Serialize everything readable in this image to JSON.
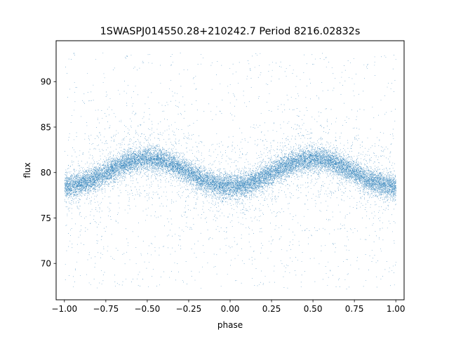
{
  "chart_data": {
    "type": "scatter",
    "title": "1SWASPJ014550.28+210242.7 Period 8216.02832s",
    "xlabel": "phase",
    "ylabel": "flux",
    "xlim": [
      -1.05,
      1.05
    ],
    "ylim": [
      66.0,
      94.5
    ],
    "x_ticks": [
      -1.0,
      -0.75,
      -0.5,
      -0.25,
      0.0,
      0.25,
      0.5,
      0.75,
      1.0
    ],
    "x_tick_labels": [
      "−1.00",
      "−0.75",
      "−0.50",
      "−0.25",
      "0.00",
      "0.25",
      "0.50",
      "0.75",
      "1.00"
    ],
    "y_ticks": [
      70,
      75,
      80,
      85,
      90
    ],
    "y_tick_labels": [
      "70",
      "75",
      "80",
      "85",
      "90"
    ],
    "grid": false,
    "legend": false,
    "marker_color": "#1f77b4",
    "series": [
      {
        "phase_range": [
          -1.0,
          1.0
        ],
        "mean_flux": 80.0,
        "amplitude": 1.5,
        "min_flux_phase": [
          0.0,
          -1.0,
          1.0
        ],
        "max_flux_phase": [
          -0.5,
          0.5
        ],
        "point_count": 20000
      }
    ]
  }
}
